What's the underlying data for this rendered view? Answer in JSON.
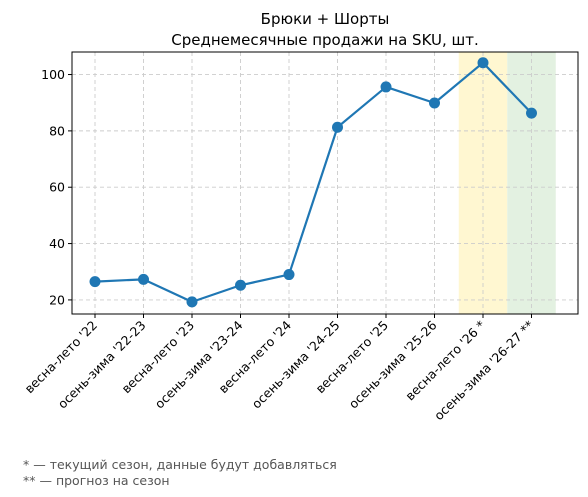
{
  "chart_data": {
    "type": "line",
    "title": "Брюки + Шорты",
    "subtitle": "Среднемесячные продажи на SKU, шт.",
    "xlabel": "",
    "ylabel": "",
    "categories": [
      "весна-лето '22",
      "осень-зима '22-23",
      "весна-лето '23",
      "осень-зима '23-24",
      "весна-лето '24",
      "осень-зима '24-25",
      "весна-лето '25",
      "осень-зима '25-26",
      "весна-лето '26 *",
      "осень-зима '26-27 **"
    ],
    "series": [
      {
        "values": [
          26.5,
          27.3,
          19.3,
          25.2,
          29.0,
          81.3,
          95.6,
          89.9,
          104.2,
          86.3
        ],
        "color": "#1f77b4"
      }
    ],
    "ylim": [
      15,
      108
    ],
    "yticks": [
      20,
      40,
      60,
      80,
      100
    ],
    "grid": true,
    "highlights": [
      {
        "category": "весна-лето '26 *",
        "color": "#fff7d1",
        "meaning": "current season"
      },
      {
        "category": "осень-зима '26-27 **",
        "color": "#e3f1e1",
        "meaning": "forecast"
      }
    ]
  },
  "footnotes": [
    "* — текущий сезон, данные будут добавляться",
    "** — прогноз на сезон"
  ]
}
